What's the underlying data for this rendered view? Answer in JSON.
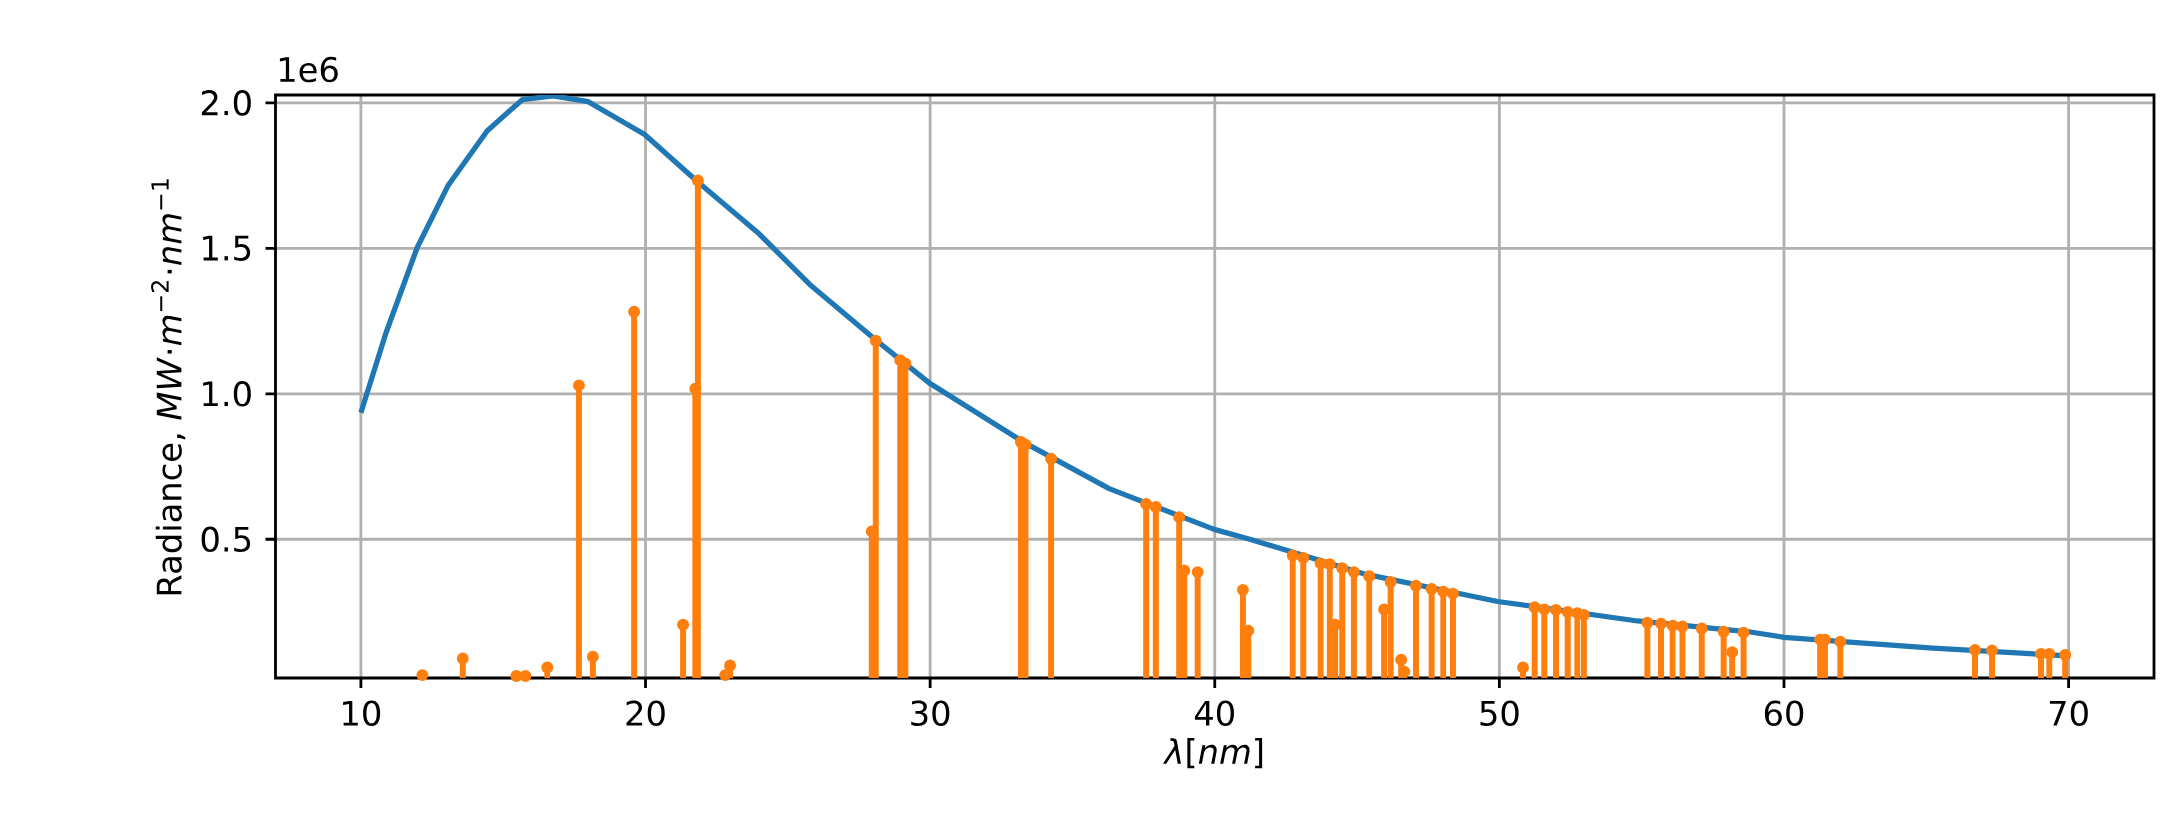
{
  "chart_data": {
    "type": "line",
    "xlabel": "*λ*[*nm*]",
    "ylabel": "Radiance, *MW*·*m*$^{−2}$·*nm*$^{−1}$",
    "annotations": [
      "1e6"
    ],
    "xlim": [
      7,
      73
    ],
    "ylim": [
      0.023,
      2.027
    ],
    "xticks": [
      10,
      20,
      30,
      40,
      50,
      60,
      70
    ],
    "yticks": [
      {
        "value": 0.5,
        "label": "0.5"
      },
      {
        "value": 1,
        "label": "1.0"
      },
      {
        "value": 1.5,
        "label": "1.5"
      },
      {
        "value": 2,
        "label": "2.0"
      }
    ],
    "grid": true,
    "series": [
      {
        "color": "#1f77b4",
        "x": [
          10.0,
          10.88,
          11.98,
          13.07,
          14.44,
          15.67,
          16.76,
          17.99,
          19.97,
          21.82,
          23.99,
          25.77,
          28.09,
          30.0,
          33.28,
          36.29,
          39.98,
          41.2,
          45.29,
          49.94,
          54.86,
          58.76,
          60.0,
          65.23,
          70.0
        ],
        "values": [
          0.935,
          1.209,
          1.503,
          1.717,
          1.904,
          2.011,
          2.024,
          2.004,
          1.891,
          1.73,
          1.55,
          1.376,
          1.185,
          1.035,
          0.834,
          0.674,
          0.534,
          0.501,
          0.38,
          0.286,
          0.219,
          0.182,
          0.163,
          0.126,
          0.099
        ]
      },
      {
        "type": "lollipop",
        "marker": "circle",
        "color": "#ff7f0e",
        "x": [
          12.16,
          13.58,
          15.46,
          15.78,
          16.55,
          17.66,
          18.15,
          19.6,
          21.32,
          21.75,
          21.84,
          22.8,
          22.97,
          27.95,
          28.09,
          28.95,
          29.13,
          33.19,
          33.35,
          34.25,
          37.59,
          37.93,
          38.75,
          38.93,
          39.4,
          40.99,
          41.18,
          42.74,
          43.11,
          43.72,
          44.04,
          44.23,
          44.48,
          44.89,
          45.43,
          45.95,
          46.18,
          46.55,
          46.66,
          47.07,
          47.62,
          48.03,
          48.37,
          50.83,
          51.24,
          51.58,
          51.99,
          52.4,
          52.74,
          52.97,
          55.2,
          55.68,
          56.09,
          56.43,
          57.11,
          57.88,
          58.18,
          58.58,
          61.27,
          61.44,
          61.98,
          66.71,
          67.31,
          69.03,
          69.32,
          69.88
        ],
        "values": [
          0.033,
          0.09,
          0.03,
          0.03,
          0.059,
          1.029,
          0.096,
          1.282,
          0.206,
          1.017,
          1.733,
          0.033,
          0.066,
          0.527,
          1.182,
          1.115,
          1.104,
          0.834,
          0.825,
          0.777,
          0.621,
          0.611,
          0.576,
          0.393,
          0.387,
          0.326,
          0.186,
          0.444,
          0.436,
          0.417,
          0.414,
          0.206,
          0.4,
          0.387,
          0.373,
          0.259,
          0.353,
          0.086,
          0.045,
          0.34,
          0.329,
          0.32,
          0.313,
          0.059,
          0.266,
          0.259,
          0.257,
          0.25,
          0.246,
          0.24,
          0.213,
          0.21,
          0.203,
          0.2,
          0.193,
          0.182,
          0.112,
          0.179,
          0.155,
          0.155,
          0.148,
          0.119,
          0.118,
          0.106,
          0.106,
          0.102
        ]
      }
    ]
  }
}
